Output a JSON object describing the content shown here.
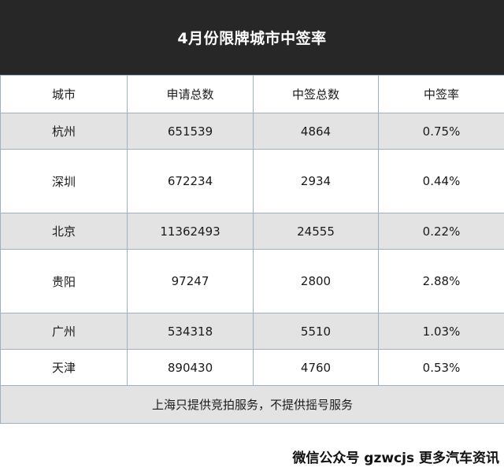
{
  "title": "4月份限牌城市中签率",
  "table": {
    "headers": [
      "城市",
      "申请总数",
      "中签总数",
      "中签率"
    ],
    "rows": [
      [
        "杭州",
        "651539",
        "4864",
        "0.75%"
      ],
      [
        "深圳",
        "672234",
        "2934",
        "0.44%"
      ],
      [
        "北京",
        "11362493",
        "24555",
        "0.22%"
      ],
      [
        "贵阳",
        "97247",
        "2800",
        "2.88%"
      ],
      [
        "广州",
        "534318",
        "5510",
        "1.03%"
      ],
      [
        "天津",
        "890430",
        "4760",
        "0.53%"
      ]
    ],
    "note": "上海只提供竞拍服务，不提供摇号服务"
  },
  "footer": "微信公众号 gzwcjs 更多汽车资讯",
  "colors": {
    "title_bg": "#272727",
    "shade_row": "#e3e3e3",
    "border": "#9fb0c6"
  }
}
